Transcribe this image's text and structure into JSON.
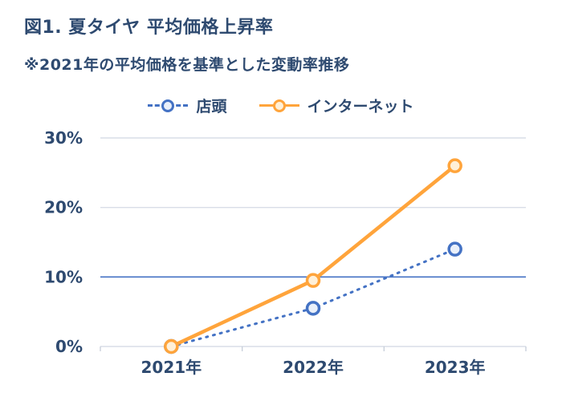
{
  "page": {
    "title": "図1. 夏タイヤ 平均価格上昇率",
    "subtitle": "※2021年の平均価格を基準とした変動率推移"
  },
  "legend": {
    "items": [
      {
        "label": "店頭",
        "color": "#4472C4",
        "line_style": "dashed"
      },
      {
        "label": "インターネット",
        "color": "#FFA43B",
        "line_style": "solid"
      }
    ]
  },
  "chart_data": {
    "type": "line",
    "title": "図1. 夏タイヤ 平均価格上昇率",
    "subtitle": "※2021年の平均価格を基準とした変動率推移",
    "categories": [
      "2021年",
      "2022年",
      "2023年"
    ],
    "series": [
      {
        "name": "店頭",
        "values": [
          0,
          5.5,
          14
        ],
        "color": "#4472C4",
        "line_style": "dashed",
        "marker_fill": "#EAF0FA"
      },
      {
        "name": "インターネット",
        "values": [
          0,
          9.5,
          26
        ],
        "color": "#FFA43B",
        "line_style": "solid",
        "marker_fill": "#FFF0D8"
      }
    ],
    "xlabel": "",
    "ylabel": "",
    "ylim": [
      0,
      30
    ],
    "yticks": [
      0,
      10,
      20,
      30
    ],
    "ytick_labels": [
      "0%",
      "10%",
      "20%",
      "30%"
    ],
    "grid": true,
    "emphasized_gridline": {
      "value": 10,
      "color": "#4472C4"
    },
    "legend_position": "top"
  },
  "colors": {
    "text": "#2E4A70",
    "store_line": "#4472C4",
    "internet_line": "#FFA43B",
    "grid": "#D9DEE7",
    "axis": "#C9D0DB",
    "background": "#FFFFFF"
  }
}
